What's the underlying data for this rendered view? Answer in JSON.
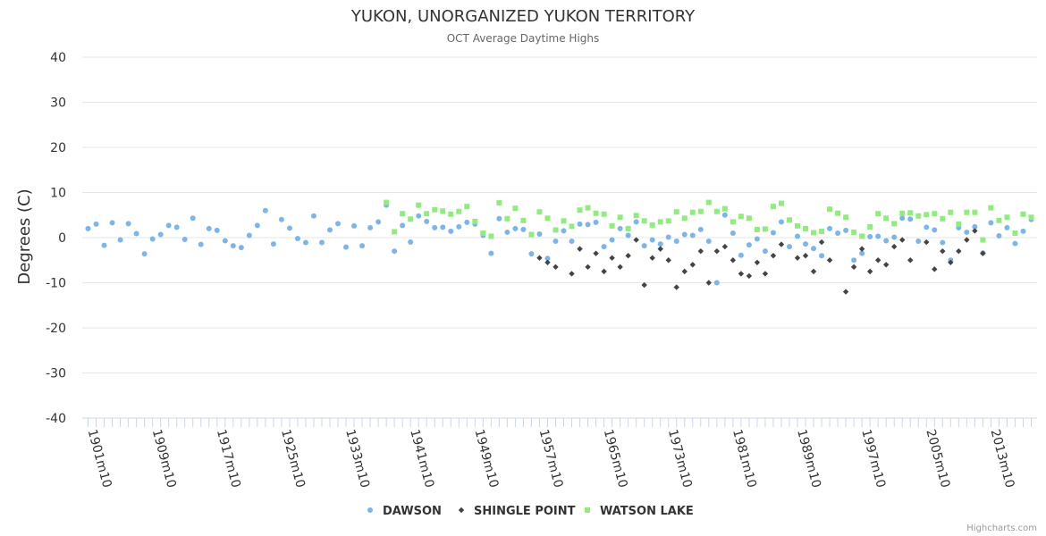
{
  "credits": "Highcharts.com",
  "chart_data": {
    "type": "scatter",
    "title": "YUKON, UNORGANIZED YUKON TERRITORY",
    "subtitle": "OCT Average Daytime Highs",
    "ylabel": "Degrees (C)",
    "ylim": [
      -40,
      40
    ],
    "yticks": [
      -40,
      -30,
      -20,
      -10,
      0,
      10,
      20,
      30,
      40
    ],
    "xlim": [
      1901,
      2018
    ],
    "xtick_labels": [
      "1901m10",
      "1909m10",
      "1917m10",
      "1925m10",
      "1933m10",
      "1941m10",
      "1949m10",
      "1957m10",
      "1965m10",
      "1973m10",
      "1981m10",
      "1989m10",
      "1997m10",
      "2005m10",
      "2013m10"
    ],
    "grid": "horizontal",
    "legend_position": "bottom-center",
    "series": [
      {
        "name": "DAWSON",
        "color": "#7cb5ec",
        "marker": "circle",
        "x": [
          1901,
          1902,
          1903,
          1904,
          1905,
          1906,
          1907,
          1908,
          1909,
          1910,
          1911,
          1912,
          1913,
          1914,
          1915,
          1916,
          1917,
          1918,
          1919,
          1920,
          1921,
          1922,
          1923,
          1924,
          1925,
          1926,
          1927,
          1928,
          1929,
          1930,
          1931,
          1932,
          1933,
          1934,
          1935,
          1936,
          1937,
          1938,
          1939,
          1940,
          1941,
          1942,
          1943,
          1944,
          1945,
          1946,
          1947,
          1948,
          1949,
          1950,
          1951,
          1952,
          1953,
          1954,
          1955,
          1956,
          1957,
          1958,
          1959,
          1960,
          1961,
          1962,
          1963,
          1964,
          1965,
          1966,
          1967,
          1968,
          1969,
          1970,
          1971,
          1972,
          1973,
          1974,
          1975,
          1976,
          1977,
          1978,
          1979,
          1980,
          1981,
          1982,
          1983,
          1984,
          1985,
          1986,
          1987,
          1988,
          1989,
          1990,
          1991,
          1992,
          1993,
          1994,
          1995,
          1996,
          1997,
          1998,
          1999,
          2000,
          2001,
          2002,
          2003,
          2004,
          2005,
          2006,
          2007,
          2008,
          2009,
          2010,
          2011,
          2012,
          2013,
          2014,
          2015,
          2016,
          2017,
          2018
        ],
        "values": [
          2.0,
          3.0,
          -1.7,
          3.3,
          -0.5,
          3.1,
          0.9,
          -3.6,
          -0.3,
          0.7,
          2.7,
          2.3,
          -0.4,
          4.3,
          -1.5,
          2.0,
          1.6,
          -0.7,
          -1.8,
          -2.2,
          0.5,
          2.7,
          6.0,
          -1.4,
          4.0,
          2.1,
          -0.2,
          -1.1,
          4.8,
          -1.1,
          1.7,
          3.1,
          -2.1,
          2.6,
          -1.8,
          2.2,
          3.5,
          7.2,
          -3.0,
          2.7,
          -1.0,
          4.8,
          3.6,
          2.2,
          2.3,
          1.4,
          2.4,
          3.4,
          3.0,
          0.5,
          -3.5,
          4.2,
          1.2,
          2.0,
          1.8,
          -3.6,
          0.8,
          -4.6,
          -0.8,
          1.5,
          -0.8,
          3.0,
          2.9,
          3.4,
          -2.0,
          -0.5,
          2.0,
          0.5,
          3.5,
          -1.8,
          -0.5,
          -1.4,
          0.1,
          -0.8,
          0.7,
          0.5,
          1.8,
          -0.8,
          -10.0,
          5.0,
          1.0,
          -3.9,
          -1.6,
          -0.3,
          -3.0,
          1.1,
          3.5,
          -2.0,
          0.3,
          -1.4,
          -2.4,
          -4.0,
          2.0,
          1.0,
          1.6,
          -5.0,
          -3.5,
          0.2,
          0.3,
          -0.7,
          0.1,
          4.3,
          4.1,
          -0.8,
          2.3,
          1.7,
          -1.1,
          -5.0,
          2.2,
          1.2,
          2.4,
          -3.4,
          3.3,
          0.4,
          2.2,
          -1.3,
          1.4,
          4.0
        ]
      },
      {
        "name": "SHINGLE POINT",
        "color": "#434348",
        "marker": "diamond",
        "x": [
          1957,
          1958,
          1959,
          1961,
          1962,
          1963,
          1964,
          1965,
          1966,
          1967,
          1968,
          1969,
          1970,
          1971,
          1972,
          1973,
          1974,
          1975,
          1976,
          1977,
          1978,
          1979,
          1980,
          1981,
          1982,
          1983,
          1984,
          1985,
          1986,
          1987,
          1989,
          1990,
          1991,
          1992,
          1993,
          1995,
          1996,
          1997,
          1998,
          1999,
          2000,
          2001,
          2002,
          2003,
          2005,
          2006,
          2007,
          2008,
          2009,
          2010,
          2011,
          2012
        ],
        "values": [
          -4.5,
          -5.5,
          -6.5,
          -8.0,
          -2.5,
          -6.5,
          -3.5,
          -7.5,
          -4.5,
          -6.5,
          -4.0,
          -0.5,
          -10.5,
          -4.5,
          -2.5,
          -5.0,
          -11.0,
          -7.5,
          -6.0,
          -3.0,
          -10.0,
          -3.0,
          -2.0,
          -5.0,
          -8.0,
          -8.5,
          -5.5,
          -8.0,
          -4.0,
          -1.5,
          -4.5,
          -4.0,
          -7.5,
          -1.0,
          -5.0,
          -12.0,
          -6.5,
          -2.5,
          -7.5,
          -5.0,
          -6.0,
          -2.0,
          -0.5,
          -5.0,
          -1.0,
          -7.0,
          -3.0,
          -5.5,
          -3.0,
          -0.5,
          1.5,
          -3.5
        ]
      },
      {
        "name": "WATSON LAKE",
        "color": "#90ed7d",
        "marker": "square",
        "x": [
          1938,
          1939,
          1940,
          1941,
          1942,
          1943,
          1944,
          1945,
          1946,
          1947,
          1948,
          1949,
          1950,
          1951,
          1952,
          1953,
          1954,
          1955,
          1956,
          1957,
          1958,
          1959,
          1960,
          1961,
          1962,
          1963,
          1964,
          1965,
          1966,
          1967,
          1968,
          1969,
          1970,
          1971,
          1972,
          1973,
          1974,
          1975,
          1976,
          1977,
          1978,
          1979,
          1980,
          1981,
          1982,
          1983,
          1984,
          1985,
          1986,
          1987,
          1988,
          1989,
          1990,
          1991,
          1992,
          1993,
          1994,
          1995,
          1996,
          1997,
          1998,
          1999,
          2000,
          2001,
          2002,
          2003,
          2004,
          2005,
          2006,
          2007,
          2008,
          2009,
          2010,
          2011,
          2012,
          2013,
          2014,
          2015,
          2016,
          2017,
          2018
        ],
        "values": [
          7.8,
          1.3,
          5.3,
          4.1,
          7.2,
          5.3,
          6.2,
          5.9,
          5.2,
          5.8,
          6.9,
          3.6,
          1.0,
          0.3,
          7.7,
          4.2,
          6.5,
          3.8,
          0.7,
          5.7,
          4.3,
          1.7,
          3.7,
          2.5,
          6.1,
          6.6,
          5.4,
          5.2,
          2.6,
          4.5,
          2.0,
          4.9,
          3.7,
          2.8,
          3.5,
          3.7,
          5.7,
          4.3,
          5.6,
          5.8,
          7.8,
          5.8,
          6.4,
          3.5,
          4.7,
          4.3,
          1.8,
          1.9,
          6.9,
          7.6,
          3.9,
          2.6,
          2.0,
          1.1,
          1.4,
          6.3,
          5.4,
          4.5,
          1.2,
          0.3,
          2.4,
          5.3,
          4.3,
          3.1,
          5.4,
          5.5,
          4.8,
          5.1,
          5.3,
          4.2,
          5.6,
          3.0,
          5.6,
          5.6,
          -0.5,
          6.6,
          3.8,
          4.5,
          1.0,
          5.2,
          4.5
        ]
      }
    ]
  }
}
